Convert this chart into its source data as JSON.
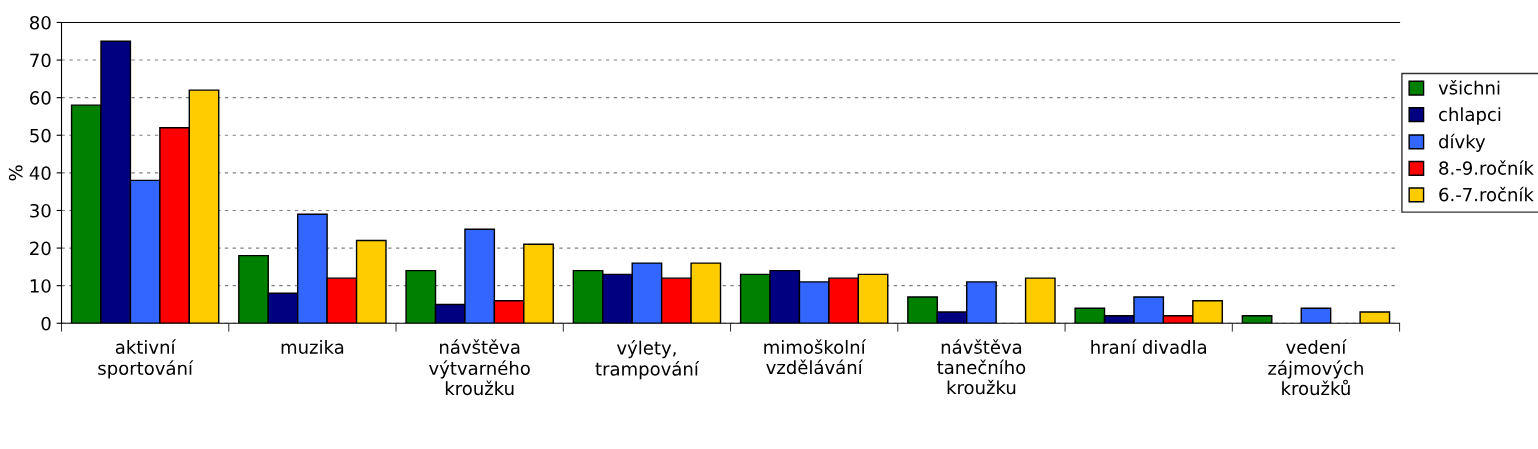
{
  "chart_data": {
    "type": "bar",
    "ylabel": "%",
    "categories": [
      "aktivní\nsportování",
      "muzika",
      "návštěva\nvýtvarného\nkroužku",
      "výlety,\ntrampování",
      "mimoškolní\nvzdělávání",
      "návštěva\ntanečního\nkroužku",
      "hraní divadla",
      "vedení\nzájmových\nkroužků"
    ],
    "series": [
      {
        "name": "všichni",
        "color": "#008000",
        "values": [
          58,
          18,
          14,
          14,
          13,
          7,
          4,
          2
        ]
      },
      {
        "name": "chlapci",
        "color": "#000080",
        "values": [
          75,
          8,
          5,
          13,
          14,
          3,
          2,
          null
        ]
      },
      {
        "name": "dívky",
        "color": "#3366ff",
        "values": [
          38,
          29,
          25,
          16,
          11,
          11,
          7,
          4
        ]
      },
      {
        "name": "8.-9.ročník",
        "color": "#ff0000",
        "values": [
          52,
          12,
          6,
          12,
          12,
          null,
          2,
          null
        ]
      },
      {
        "name": "6.-7.ročník",
        "color": "#ffcc00",
        "values": [
          62,
          22,
          21,
          16,
          13,
          12,
          6,
          3
        ]
      }
    ],
    "ylim": [
      0,
      80
    ],
    "yticks": [
      0,
      10,
      20,
      30,
      40,
      50,
      60,
      70,
      80
    ],
    "grid": "y",
    "legend": "right"
  }
}
